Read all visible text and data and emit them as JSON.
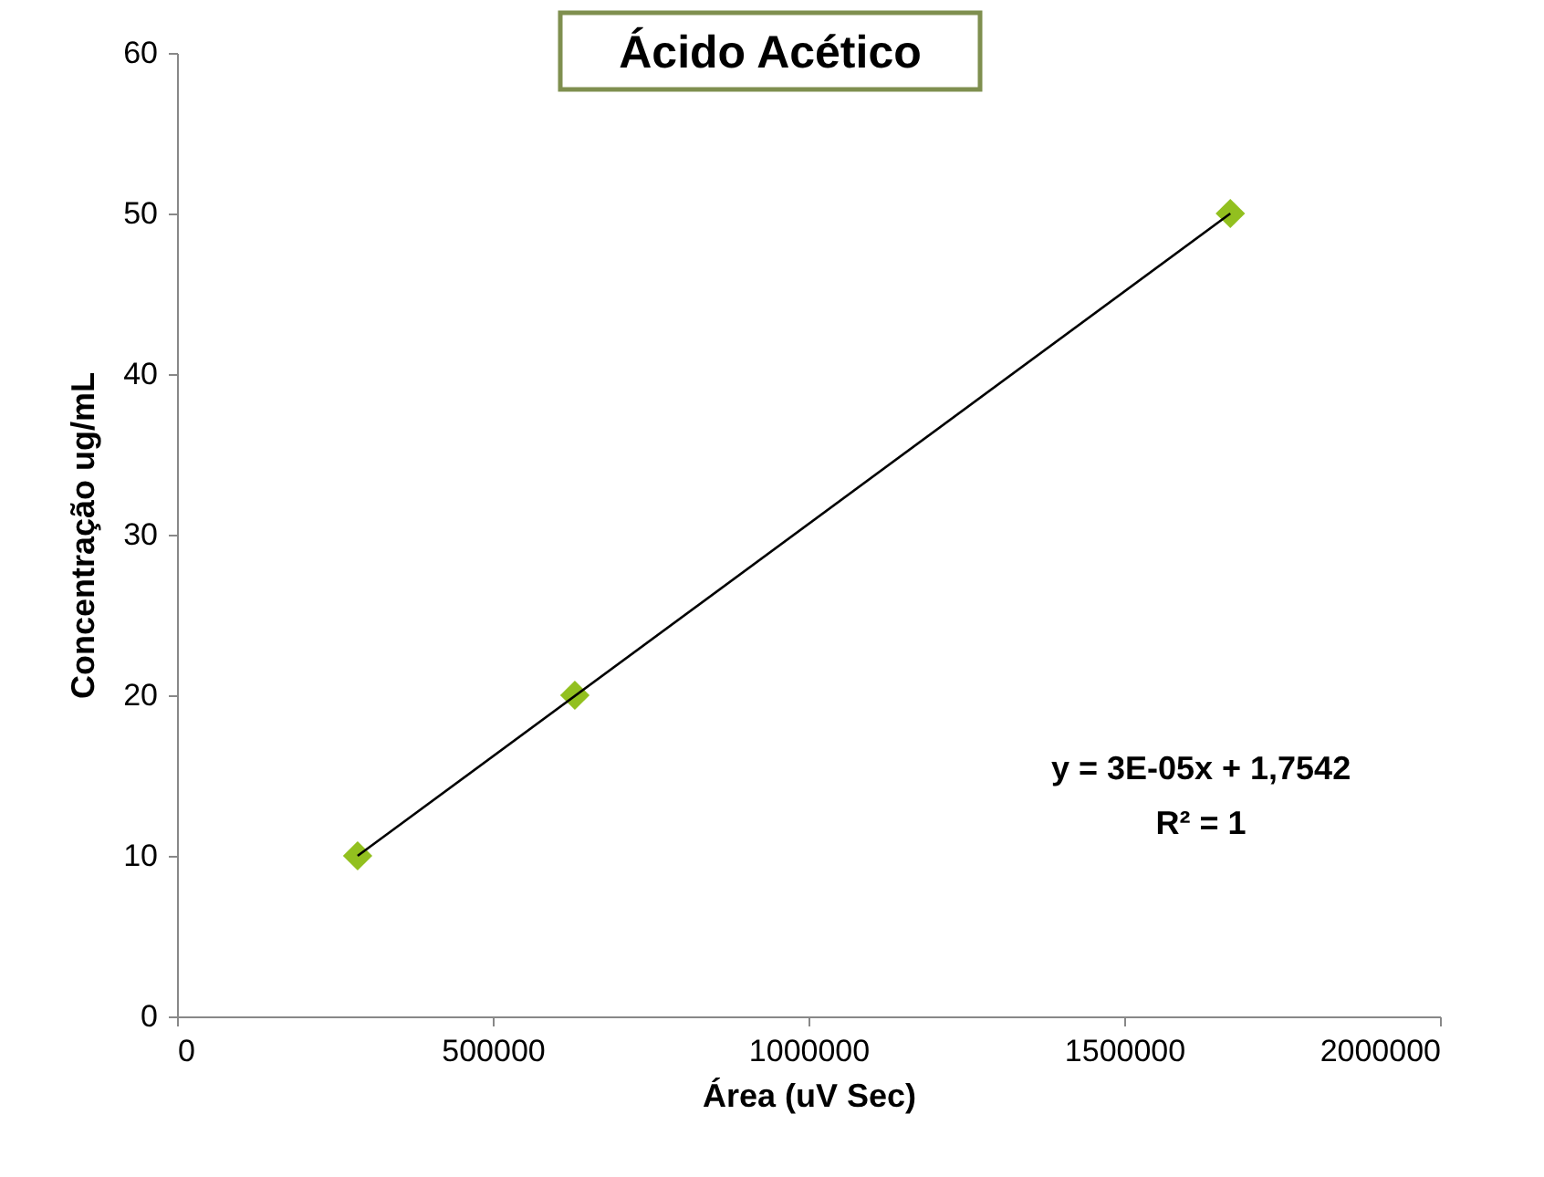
{
  "chart_data": {
    "type": "scatter",
    "title": "Ácido Acético",
    "xlabel": "Área (uV Sec)",
    "ylabel": "Concentração ug/mL",
    "x": [
      286000,
      630000,
      1668000
    ],
    "series": [
      {
        "color": "#92c01f",
        "values": [
          10,
          20,
          50
        ],
        "marker": "diamond"
      },
      {
        "type": "line",
        "color": "#000000",
        "x": [
          286000,
          1668000
        ],
        "values": [
          10,
          50
        ]
      }
    ],
    "xlim": [
      0,
      2000000
    ],
    "xticks": [
      0,
      500000,
      1000000,
      1500000,
      2000000
    ],
    "ylim": [
      0,
      60
    ],
    "yticks": [
      0,
      10,
      20,
      30,
      40,
      50,
      60
    ],
    "annotations": [
      "y = 3E-05x + 1,7542",
      "R² = 1"
    ],
    "grid": false
  }
}
